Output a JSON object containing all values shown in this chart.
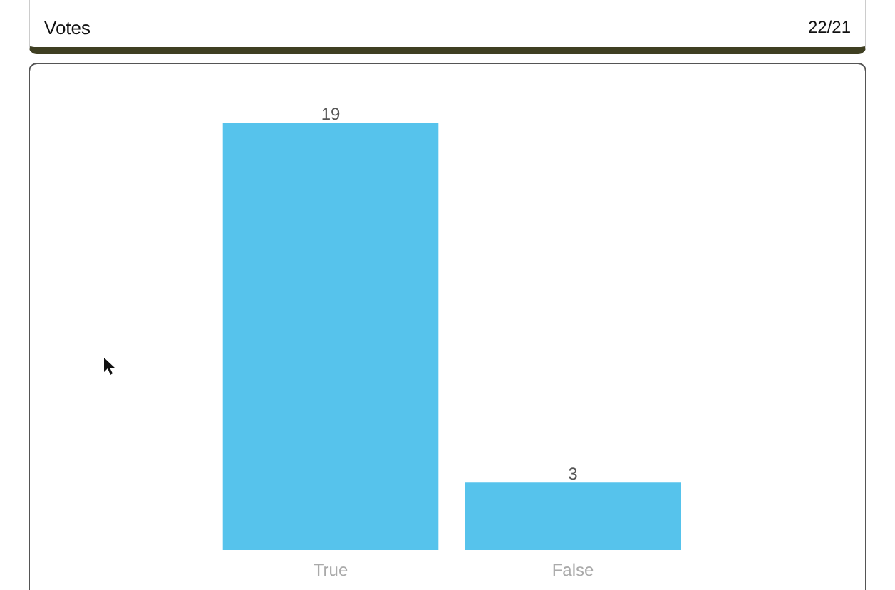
{
  "chart_data": {
    "type": "bar",
    "title": "Votes",
    "annotations": [
      "22/21"
    ],
    "categories": [
      "True",
      "False"
    ],
    "values": [
      19,
      3
    ],
    "color": "#56c3ec",
    "data_labels": true
  }
}
